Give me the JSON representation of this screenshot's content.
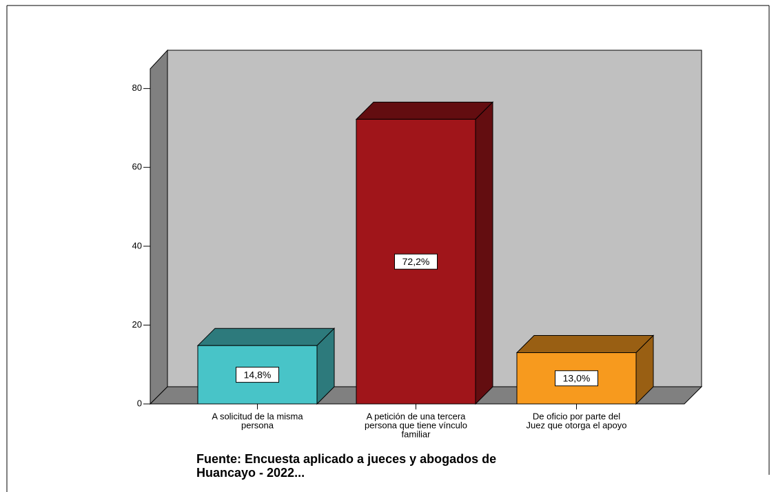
{
  "chart_data": {
    "type": "bar3d",
    "categories": [
      [
        "A solicitud de la misma",
        "persona"
      ],
      [
        "A petición de una tercera",
        "persona que tiene vínculo",
        "familiar"
      ],
      [
        "De oficio por parte del",
        "Juez que otorga el apoyo"
      ]
    ],
    "values": [
      14.8,
      72.2,
      13.0
    ],
    "value_labels": [
      "14,8%",
      "72,2%",
      "13,0%"
    ],
    "colors": [
      "#48c4c8",
      "#a0151a",
      "#f79a1e"
    ],
    "ylim": [
      0,
      85
    ],
    "yticks": [
      0,
      20,
      40,
      60,
      80
    ],
    "note": [
      "Fuente: Encuesta aplicado a jueces y abogados de",
      "Huancayo - 2022..."
    ]
  }
}
